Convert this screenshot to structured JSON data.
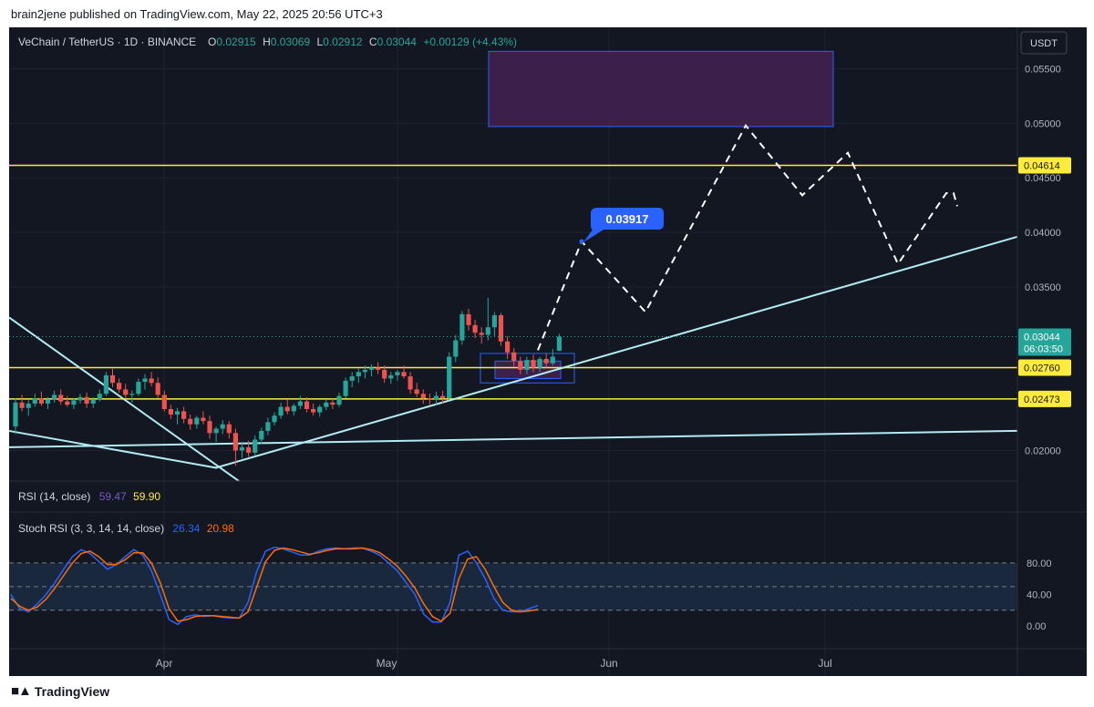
{
  "header": {
    "published": "brain2jene published on TradingView.com, May 22, 2025 20:56 UTC+3"
  },
  "symbol": {
    "title": "VeChain / TetherUS · 1D · BINANCE",
    "open_label": "O",
    "open": "0.02915",
    "high_label": "H",
    "high": "0.03069",
    "low_label": "L",
    "low": "0.02912",
    "close_label": "C",
    "close": "0.03044",
    "change": "+0.00129 (+4.43%)"
  },
  "currency_badge": "USDT",
  "price_axis": {
    "ticks": [
      "0.05500",
      "0.05000",
      "0.04500",
      "0.04000",
      "0.03500",
      "0.02000"
    ],
    "tick_values": [
      0.055,
      0.05,
      0.045,
      0.04,
      0.035,
      0.02
    ]
  },
  "price_labels": {
    "current_price": "0.03044",
    "countdown": "06:03:50",
    "level_1": "0.04614",
    "level_2": "0.02760",
    "level_3": "0.02473"
  },
  "annotation_label": "0.03917",
  "x_axis": {
    "labels": [
      "Apr",
      "May",
      "Jun",
      "Jul"
    ]
  },
  "rsi": {
    "name": "RSI (14, close)",
    "value1": "59.47",
    "value2": "59.90"
  },
  "stoch": {
    "name": "Stoch RSI (3, 3, 14, 14, close)",
    "k_value": "26.34",
    "d_value": "20.98",
    "ticks": [
      "80.00",
      "40.00",
      "0.00"
    ],
    "tick_values": [
      80,
      40,
      0
    ]
  },
  "footer": {
    "brand": "TradingView"
  },
  "colors": {
    "bg": "#131722",
    "up": "#26a69a",
    "down": "#ef5350",
    "yellow": "#ffeb3b",
    "trend": "#b2ebf2",
    "label_blue": "#2962ff",
    "k_line": "#2962ff",
    "d_line": "#ff6d00",
    "zone_fill": "#3c1f4a"
  },
  "chart_data": [
    {
      "type": "candlestick",
      "title": "VeChain / TetherUS · 1D · BINANCE",
      "ylim": [
        0.0172,
        0.0588
      ],
      "x_labels": [
        "Apr",
        "May",
        "Jun",
        "Jul"
      ],
      "candles": [
        [
          0.0222,
          0.0248,
          0.0215,
          0.0244
        ],
        [
          0.0244,
          0.0251,
          0.0236,
          0.0239
        ],
        [
          0.0239,
          0.0246,
          0.0232,
          0.0243
        ],
        [
          0.0243,
          0.0252,
          0.024,
          0.0248
        ],
        [
          0.0248,
          0.0254,
          0.0241,
          0.0243
        ],
        [
          0.0243,
          0.0249,
          0.0238,
          0.0247
        ],
        [
          0.0247,
          0.0255,
          0.0244,
          0.0251
        ],
        [
          0.0251,
          0.0256,
          0.0242,
          0.0245
        ],
        [
          0.0245,
          0.025,
          0.024,
          0.0242
        ],
        [
          0.0242,
          0.0248,
          0.0238,
          0.0246
        ],
        [
          0.0246,
          0.0252,
          0.0243,
          0.0249
        ],
        [
          0.0249,
          0.0253,
          0.0239,
          0.0243
        ],
        [
          0.0243,
          0.0249,
          0.0239,
          0.0247
        ],
        [
          0.0247,
          0.0256,
          0.0245,
          0.0252
        ],
        [
          0.0252,
          0.0272,
          0.025,
          0.0269
        ],
        [
          0.0269,
          0.0275,
          0.0258,
          0.0262
        ],
        [
          0.0262,
          0.0266,
          0.0253,
          0.0256
        ],
        [
          0.0256,
          0.0261,
          0.0248,
          0.0251
        ],
        [
          0.0251,
          0.0255,
          0.0244,
          0.0252
        ],
        [
          0.0252,
          0.0266,
          0.025,
          0.0263
        ],
        [
          0.0263,
          0.027,
          0.0256,
          0.0266
        ],
        [
          0.0266,
          0.0272,
          0.0259,
          0.0262
        ],
        [
          0.0262,
          0.0267,
          0.0248,
          0.0251
        ],
        [
          0.0251,
          0.0255,
          0.0236,
          0.0238
        ],
        [
          0.0238,
          0.0242,
          0.0229,
          0.0233
        ],
        [
          0.0233,
          0.0239,
          0.0224,
          0.0236
        ],
        [
          0.0236,
          0.024,
          0.0225,
          0.0229
        ],
        [
          0.0229,
          0.0233,
          0.0219,
          0.0224
        ],
        [
          0.0224,
          0.0232,
          0.022,
          0.023
        ],
        [
          0.023,
          0.0236,
          0.0224,
          0.0227
        ],
        [
          0.0227,
          0.0232,
          0.0211,
          0.0216
        ],
        [
          0.0216,
          0.0222,
          0.0208,
          0.022
        ],
        [
          0.022,
          0.0228,
          0.0215,
          0.0224
        ],
        [
          0.0224,
          0.0227,
          0.0211,
          0.0216
        ],
        [
          0.0216,
          0.022,
          0.0186,
          0.02
        ],
        [
          0.02,
          0.0208,
          0.0193,
          0.0203
        ],
        [
          0.0203,
          0.0209,
          0.0194,
          0.0198
        ],
        [
          0.0198,
          0.0214,
          0.0195,
          0.021
        ],
        [
          0.021,
          0.0221,
          0.0206,
          0.0218
        ],
        [
          0.0218,
          0.023,
          0.0214,
          0.0226
        ],
        [
          0.0226,
          0.0235,
          0.0223,
          0.0232
        ],
        [
          0.0232,
          0.0244,
          0.0229,
          0.024
        ],
        [
          0.024,
          0.0247,
          0.0233,
          0.0236
        ],
        [
          0.0236,
          0.0243,
          0.0232,
          0.0241
        ],
        [
          0.0241,
          0.025,
          0.0238,
          0.0245
        ],
        [
          0.0245,
          0.0249,
          0.0235,
          0.0238
        ],
        [
          0.0238,
          0.0243,
          0.0232,
          0.0235
        ],
        [
          0.0235,
          0.0242,
          0.0231,
          0.024
        ],
        [
          0.024,
          0.0247,
          0.0237,
          0.0244
        ],
        [
          0.0244,
          0.0248,
          0.0238,
          0.0242
        ],
        [
          0.0242,
          0.0253,
          0.024,
          0.025
        ],
        [
          0.025,
          0.0267,
          0.0248,
          0.0264
        ],
        [
          0.0264,
          0.0272,
          0.0258,
          0.0268
        ],
        [
          0.0268,
          0.0275,
          0.0262,
          0.0272
        ],
        [
          0.0272,
          0.0278,
          0.0266,
          0.0274
        ],
        [
          0.0274,
          0.0279,
          0.0268,
          0.0276
        ],
        [
          0.0276,
          0.0281,
          0.027,
          0.0274
        ],
        [
          0.0274,
          0.0278,
          0.0262,
          0.0266
        ],
        [
          0.0266,
          0.0272,
          0.0261,
          0.0269
        ],
        [
          0.0269,
          0.0274,
          0.0264,
          0.0272
        ],
        [
          0.0272,
          0.0278,
          0.0266,
          0.0268
        ],
        [
          0.0268,
          0.0272,
          0.0252,
          0.0256
        ],
        [
          0.0256,
          0.0262,
          0.0249,
          0.0252
        ],
        [
          0.0252,
          0.0256,
          0.0243,
          0.0248
        ],
        [
          0.0248,
          0.0252,
          0.0242,
          0.0247
        ],
        [
          0.0247,
          0.0254,
          0.0242,
          0.025
        ],
        [
          0.025,
          0.0255,
          0.0243,
          0.0248
        ],
        [
          0.0248,
          0.029,
          0.0246,
          0.0286
        ],
        [
          0.0286,
          0.0306,
          0.0281,
          0.0301
        ],
        [
          0.0301,
          0.0328,
          0.0297,
          0.0325
        ],
        [
          0.0325,
          0.033,
          0.031,
          0.0315
        ],
        [
          0.0315,
          0.032,
          0.0303,
          0.0308
        ],
        [
          0.0308,
          0.0313,
          0.0298,
          0.0306
        ],
        [
          0.0306,
          0.034,
          0.0301,
          0.0313
        ],
        [
          0.0313,
          0.0327,
          0.0305,
          0.0324
        ],
        [
          0.0324,
          0.0326,
          0.0296,
          0.03
        ],
        [
          0.03,
          0.0305,
          0.0284,
          0.029
        ],
        [
          0.029,
          0.0294,
          0.0277,
          0.0282
        ],
        [
          0.0282,
          0.0286,
          0.027,
          0.0274
        ],
        [
          0.0274,
          0.0286,
          0.027,
          0.0283
        ],
        [
          0.0283,
          0.0288,
          0.0272,
          0.0276
        ],
        [
          0.0276,
          0.0286,
          0.0272,
          0.0284
        ],
        [
          0.0284,
          0.0289,
          0.0276,
          0.028
        ],
        [
          0.028,
          0.0293,
          0.0278,
          0.0286
        ],
        [
          0.02915,
          0.03069,
          0.02912,
          0.03044
        ]
      ],
      "horizontal_levels": [
        0.04614,
        0.0276,
        0.02473
      ],
      "target_zone": [
        0.0497,
        0.0566
      ],
      "projected_path": [
        0.0292,
        0.03917,
        0.0327,
        0.0498,
        0.0434,
        0.0473,
        0.0371,
        0.0436,
        0.0424
      ],
      "current_price": 0.03044
    },
    {
      "type": "line",
      "title": "Stoch RSI (3, 3, 14, 14, close)",
      "ylim": [
        -15,
        110
      ],
      "bands": [
        80,
        50,
        20
      ],
      "series": [
        {
          "name": "26.34",
          "values": [
            40,
            22,
            18,
            28,
            40,
            55,
            72,
            88,
            97,
            92,
            82,
            72,
            78,
            88,
            97,
            90,
            70,
            40,
            8,
            2,
            12,
            14,
            12,
            13,
            11,
            10,
            10,
            30,
            70,
            95,
            100,
            98,
            94,
            90,
            90,
            95,
            98,
            99,
            98,
            99,
            99,
            95,
            90,
            80,
            70,
            55,
            40,
            15,
            5,
            5,
            30,
            90,
            95,
            80,
            60,
            35,
            20,
            18,
            18,
            22,
            26
          ]
        },
        {
          "name": "20.98",
          "values": [
            35,
            25,
            20,
            24,
            34,
            48,
            64,
            80,
            92,
            95,
            88,
            78,
            78,
            84,
            93,
            93,
            80,
            55,
            22,
            6,
            8,
            12,
            13,
            13,
            12,
            11,
            10,
            18,
            50,
            82,
            96,
            99,
            97,
            94,
            91,
            93,
            96,
            98,
            98,
            98,
            99,
            97,
            93,
            85,
            76,
            63,
            48,
            28,
            12,
            6,
            16,
            60,
            85,
            88,
            72,
            50,
            30,
            20,
            18,
            19,
            21
          ]
        }
      ]
    }
  ]
}
